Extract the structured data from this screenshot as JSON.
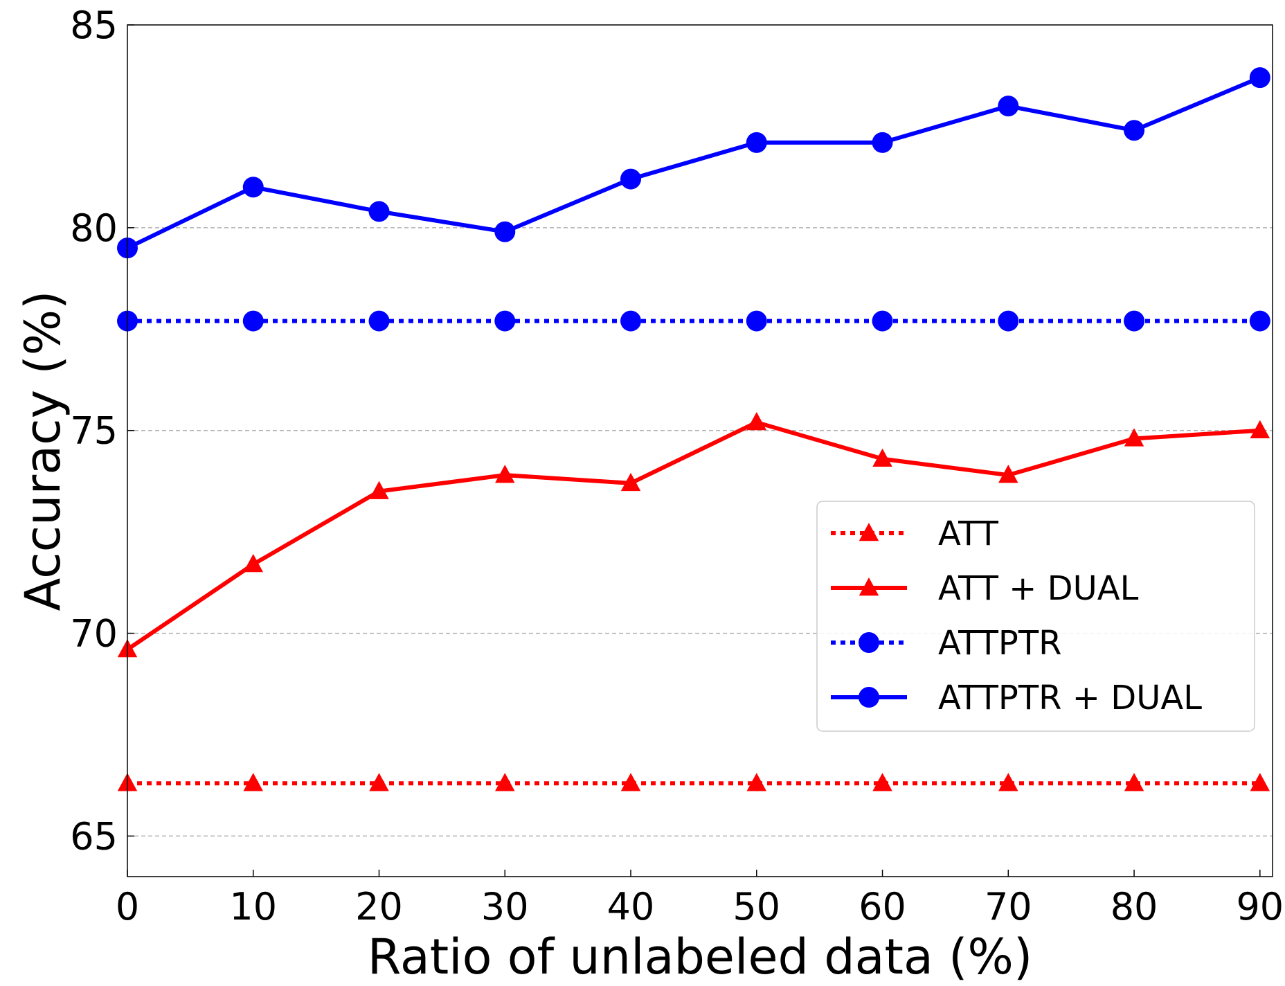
{
  "chart_data": {
    "type": "line",
    "title": "",
    "xlabel": "Ratio of unlabeled data (%)",
    "ylabel": "Accuracy (%)",
    "x": [
      0,
      10,
      20,
      30,
      40,
      50,
      60,
      70,
      80,
      90
    ],
    "xlim": [
      0,
      91
    ],
    "ylim": [
      64,
      85
    ],
    "xticks": [
      "0",
      "10",
      "20",
      "30",
      "40",
      "50",
      "60",
      "70",
      "80",
      "90"
    ],
    "yticks": [
      "65",
      "70",
      "75",
      "80",
      "85"
    ],
    "grid": "horizontal dashed",
    "legend_position": "center-right",
    "series": [
      {
        "name": "ATT",
        "color": "#ff0000",
        "line_style": "dotted",
        "marker": "triangle",
        "values": [
          66.3,
          66.3,
          66.3,
          66.3,
          66.3,
          66.3,
          66.3,
          66.3,
          66.3,
          66.3
        ]
      },
      {
        "name": "ATT + DUAL",
        "color": "#ff0000",
        "line_style": "solid",
        "marker": "triangle",
        "values": [
          69.6,
          71.7,
          73.5,
          73.9,
          73.7,
          75.2,
          74.3,
          73.9,
          74.8,
          75.0
        ]
      },
      {
        "name": "ATTPTR",
        "color": "#0000ff",
        "line_style": "dotted",
        "marker": "circle",
        "values": [
          77.7,
          77.7,
          77.7,
          77.7,
          77.7,
          77.7,
          77.7,
          77.7,
          77.7,
          77.7
        ]
      },
      {
        "name": "ATTPTR + DUAL",
        "color": "#0000ff",
        "line_style": "solid",
        "marker": "circle",
        "values": [
          79.5,
          81.0,
          80.4,
          79.9,
          81.2,
          82.1,
          82.1,
          83.0,
          82.4,
          83.7
        ]
      }
    ]
  }
}
